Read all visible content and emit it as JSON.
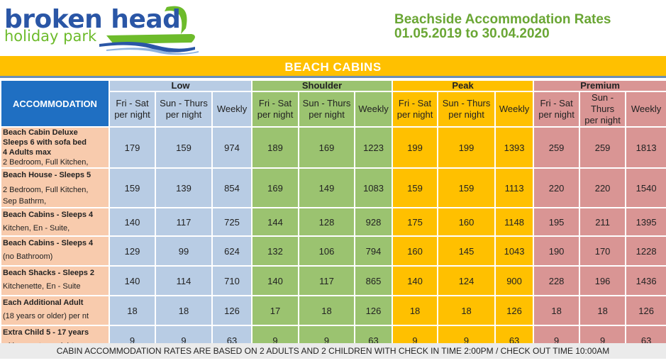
{
  "logo": {
    "line1": "broken head",
    "line2": "holiday park"
  },
  "header": {
    "title": "Beachside Accommodation Rates",
    "date_range": "01.05.2019  to  30.04.2020"
  },
  "banner": {
    "label": "BEACH  CABINS"
  },
  "table": {
    "accommodation_header": "ACCOMMODATION",
    "seasons": [
      "Low",
      "Shoulder",
      "Peak",
      "Premium"
    ],
    "subheaders": [
      {
        "line1": "Fri - Sat",
        "line2": "per night"
      },
      {
        "line1": "Sun - Thurs",
        "line2": "per night"
      },
      {
        "line1": "Weekly",
        "line2": ""
      }
    ],
    "rows": [
      {
        "title": "Beach Cabin Deluxe",
        "title2": "Sleeps 6 with sofa bed",
        "title3": "4 Adults max",
        "desc": "2 Bedroom, Full Kitchen,",
        "desc2": "",
        "values": [
          179,
          159,
          974,
          189,
          169,
          1223,
          199,
          199,
          1393,
          259,
          259,
          1813
        ]
      },
      {
        "title": "Beach House - Sleeps 5",
        "title2": "",
        "title3": "",
        "desc": "2 Bedroom, Full Kitchen,",
        "desc2": "Sep Bathrm,",
        "values": [
          159,
          139,
          854,
          169,
          149,
          1083,
          159,
          159,
          1113,
          220,
          220,
          1540
        ]
      },
      {
        "title": "Beach Cabins - Sleeps 4",
        "title2": "",
        "title3": "",
        "desc": "Kitchen, En - Suite,",
        "desc2": "",
        "values": [
          140,
          117,
          725,
          144,
          128,
          928,
          175,
          160,
          1148,
          195,
          211,
          1395
        ]
      },
      {
        "title": "Beach Cabins - Sleeps 4",
        "title2": "",
        "title3": "",
        "desc": "(no Bathroom)",
        "desc2": "",
        "values": [
          129,
          99,
          624,
          132,
          106,
          794,
          160,
          145,
          1043,
          190,
          170,
          1228
        ]
      },
      {
        "title": "Beach Shacks - Sleeps 2",
        "title2": "",
        "title3": "",
        "desc": "Kitchenette, En - Suite",
        "desc2": "",
        "values": [
          140,
          114,
          710,
          140,
          117,
          865,
          140,
          124,
          900,
          228,
          196,
          1436
        ]
      },
      {
        "title": "Each Additional Adult",
        "title2": "",
        "title3": "",
        "desc": "(18 years or older) per nt",
        "desc2": "",
        "values": [
          18,
          18,
          126,
          17,
          18,
          126,
          18,
          18,
          126,
          18,
          18,
          126
        ]
      },
      {
        "title": "Extra Child 5 - 17 years",
        "title2": "",
        "title3": "",
        "desc": "with parent per night",
        "desc2": "",
        "values": [
          9,
          9,
          63,
          9,
          9,
          63,
          9,
          9,
          63,
          9,
          9,
          63
        ]
      }
    ]
  },
  "footer": {
    "note": "CABIN ACCOMMODATION RATES ARE BASED ON 2 ADULTS AND 2 CHILDREN WITH CHECK IN TIME 2:00PM / CHECK OUT TIME 10:00AM"
  },
  "colors": {
    "low": "#b8cce4",
    "shoulder": "#9bc370",
    "peak": "#ffc000",
    "premium": "#d99594",
    "accommodation_header": "#1f6fc2",
    "name_cells": "#f8cbad",
    "title_green": "#6aa634",
    "logo_blue": "#2a56a6"
  }
}
